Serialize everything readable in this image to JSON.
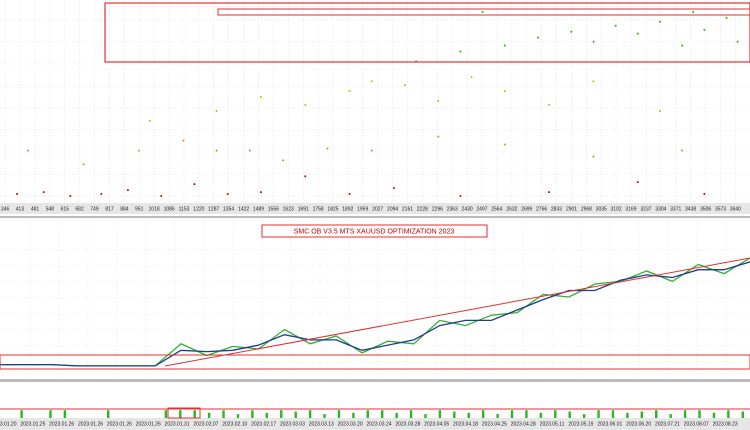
{
  "chart_data": [
    {
      "type": "scatter",
      "xlim": [
        323,
        3706
      ],
      "xticks": [
        346,
        413,
        481,
        548,
        615,
        682,
        749,
        817,
        884,
        951,
        1018,
        1086,
        1153,
        1220,
        1287,
        1354,
        1422,
        1489,
        1556,
        1623,
        1691,
        1758,
        1825,
        1892,
        1959,
        2027,
        2094,
        2161,
        2228,
        2296,
        2363,
        2430,
        2497,
        2564,
        2632,
        2699,
        2766,
        2833,
        2901,
        2968,
        3035,
        3102,
        3169,
        3237,
        3304,
        3371,
        3438,
        3506,
        3573,
        3640
      ],
      "ylim": [
        0,
        100
      ],
      "grid": true,
      "series": [
        {
          "color": "#c00000",
          "x": [
            400,
            520,
            640,
            780,
            900,
            1050,
            1200,
            1350,
            1500,
            1700,
            1900,
            2100,
            2400,
            2800,
            3200,
            3500
          ],
          "values": [
            3,
            4,
            2,
            3,
            5,
            2,
            8,
            3,
            4,
            12,
            3,
            6,
            2,
            4,
            9,
            3
          ]
        },
        {
          "color": "#e08a00",
          "x": [
            450,
            700,
            950,
            1150,
            1300,
            1450,
            1600,
            1800,
            2000,
            2300,
            2600,
            3000,
            3400
          ],
          "values": [
            25,
            18,
            25,
            30,
            25,
            25,
            20,
            26,
            25,
            32,
            28,
            22,
            25
          ]
        },
        {
          "color": "#b8c000",
          "x": [
            1000,
            1300,
            1500,
            1700,
            1900,
            2000,
            2150,
            2300,
            2450,
            2600,
            2800,
            3000,
            3300
          ],
          "values": [
            40,
            45,
            52,
            48,
            55,
            60,
            58,
            50,
            62,
            55,
            48,
            60,
            45
          ]
        },
        {
          "color": "#30b000",
          "x": [
            2200,
            2400,
            2600,
            2750,
            2900,
            3000,
            3100,
            3200,
            3300,
            3400,
            3500,
            3600,
            3650,
            2500,
            3450
          ],
          "values": [
            70,
            75,
            78,
            82,
            85,
            80,
            88,
            84,
            90,
            78,
            86,
            92,
            80,
            95,
            95
          ]
        }
      ]
    },
    {
      "type": "line",
      "title": "SMC OB V3.5 MTS XAUUSD OPTIMIZATION 2023",
      "ylim": [
        0,
        100
      ],
      "grid": true,
      "series": [
        {
          "color": "#30b030",
          "values": [
            8,
            8,
            8,
            7,
            7,
            7,
            7,
            24,
            15,
            22,
            20,
            35,
            24,
            30,
            17,
            26,
            24,
            42,
            38,
            46,
            48,
            62,
            60,
            70,
            72,
            80,
            72,
            85,
            78,
            90
          ]
        },
        {
          "color": "#1f3c8c",
          "values": [
            8,
            8,
            8,
            7,
            7,
            7,
            7,
            19,
            18,
            19,
            23,
            31,
            27,
            27,
            19,
            23,
            27,
            38,
            42,
            42,
            50,
            58,
            65,
            65,
            73,
            77,
            75,
            81,
            81,
            87
          ]
        }
      ]
    },
    {
      "type": "bar",
      "ylim": [
        0,
        10
      ],
      "color": "#22bb22",
      "categories": [
        "2023.01.20",
        null,
        "2023.01.25",
        null,
        "2023.01.26",
        null,
        "2023.01.26",
        null,
        "2023.01.26",
        null,
        "2023.01.26",
        null,
        "2023.01.31",
        null,
        "2023.02.07",
        null,
        "2023.02.10",
        null,
        "2023.02.17",
        null,
        "2023.03.03",
        null,
        "2023.03.13",
        null,
        "2023.03.20",
        null,
        "2023.03.24",
        null,
        "2023.03.28",
        null,
        "2023.04.05",
        null,
        "2023.04.18",
        null,
        "2023.04.25",
        null,
        "2023.04.28",
        null,
        "2023.05.11",
        null,
        "2023.05.19",
        null,
        "2023.06.01",
        null,
        "2023.06.20",
        null,
        "2023.07.21",
        null,
        "2023.08.07",
        null,
        "2023.08.23",
        null
      ],
      "values": [
        0,
        6,
        0,
        6,
        6,
        0,
        0,
        6,
        0,
        0,
        0,
        6,
        6,
        6,
        4,
        6,
        3,
        6,
        4,
        6,
        5,
        6,
        3,
        6,
        4,
        6,
        6,
        4,
        6,
        3,
        6,
        5,
        4,
        6,
        3,
        6,
        6,
        4,
        6,
        5,
        3,
        6,
        6,
        4,
        5,
        6,
        3,
        6,
        6,
        4,
        6,
        5
      ]
    }
  ]
}
